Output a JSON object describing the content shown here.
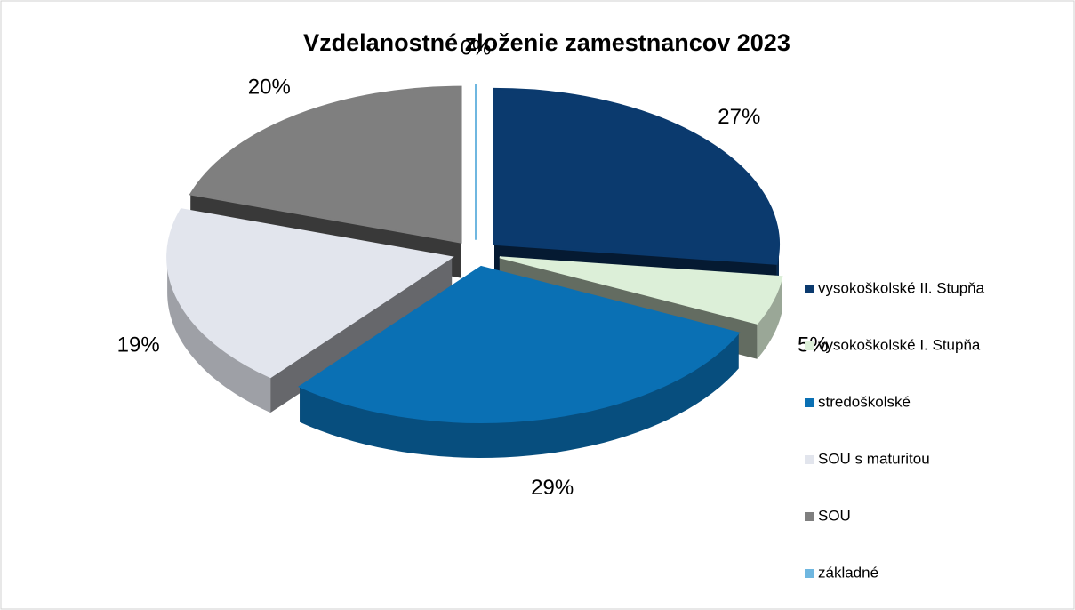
{
  "chart_data": {
    "type": "pie",
    "title": "Vzdelanostné zloženie zamestnancov 2023",
    "categories": [
      "vysokoškolské II. Stupňa",
      "vysokoškolské I. Stupňa",
      "stredoškolské",
      "SOU s maturitou",
      "SOU",
      "základné"
    ],
    "values": [
      27,
      5,
      29,
      19,
      20,
      0
    ],
    "value_labels": [
      "27%",
      "5%",
      "29%",
      "19%",
      "20%",
      "0%"
    ],
    "colors": [
      "#0b3a6e",
      "#dcefd8",
      "#0a70b4",
      "#e2e5ed",
      "#7f7f7f",
      "#6fb7e0"
    ],
    "legend": "right"
  }
}
